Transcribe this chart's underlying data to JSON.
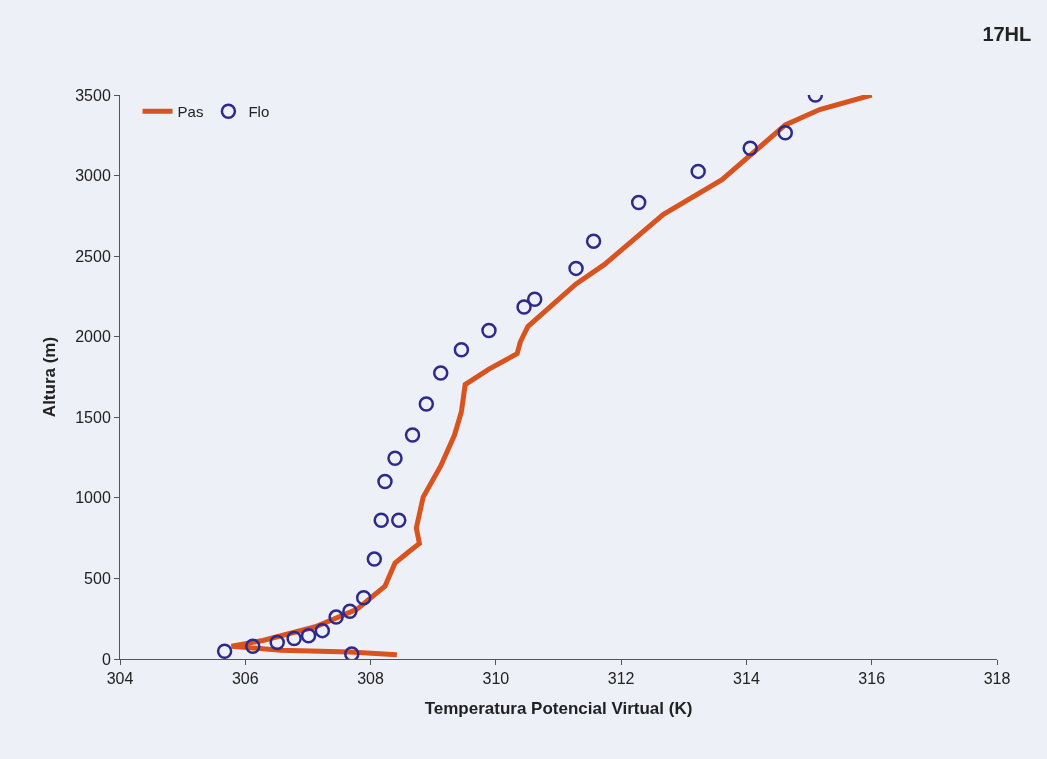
{
  "chart_data": {
    "type": "line",
    "title": "17HL",
    "xlabel": "Temperatura Potencial Virtual (K)",
    "ylabel": "Altura (m)",
    "xlim": [
      304,
      318
    ],
    "xticks": [
      304,
      306,
      308,
      310,
      312,
      314,
      316,
      318
    ],
    "ylim": [
      0,
      3500
    ],
    "yticks": [
      0,
      500,
      1000,
      1500,
      2000,
      2500,
      3000,
      3500
    ],
    "grid": false,
    "legend": "top left",
    "series": [
      {
        "name": "Pas",
        "color": "#d9531e",
        "marker": "none",
        "x": [
          308.42,
          307.67,
          306.56,
          305.78,
          306.28,
          307.12,
          307.78,
          308.23,
          308.39,
          308.62,
          308.78,
          308.73,
          308.84,
          309.12,
          309.34,
          309.45,
          309.51,
          309.89,
          310.34,
          310.39,
          310.51,
          311.28,
          311.73,
          312.67,
          313.61,
          314.62,
          315.17,
          316.0
        ],
        "values": [
          26,
          43,
          55,
          79,
          115,
          200,
          308,
          452,
          596,
          669,
          717,
          813,
          1005,
          1198,
          1390,
          1534,
          1703,
          1799,
          1895,
          1967,
          2063,
          2328,
          2447,
          2758,
          2974,
          3314,
          3410,
          3500
        ]
      },
      {
        "name": "Flo",
        "type": "scatter",
        "color": "#2e2a8c",
        "marker": "circle",
        "x": [
          307.7,
          305.67,
          306.12,
          306.51,
          306.78,
          307.01,
          307.23,
          307.45,
          307.67,
          307.89,
          308.06,
          308.17,
          308.45,
          308.23,
          308.39,
          308.67,
          308.89,
          309.12,
          309.45,
          309.89,
          310.45,
          310.62,
          311.28,
          311.56,
          312.28,
          313.23,
          314.06,
          314.62,
          315.1
        ],
        "values": [
          31,
          48,
          79,
          103,
          127,
          144,
          176,
          260,
          296,
          380,
          620,
          861,
          861,
          1101,
          1246,
          1390,
          1582,
          1775,
          1919,
          2039,
          2184,
          2233,
          2424,
          2593,
          2833,
          3026,
          3170,
          3266,
          3500
        ]
      }
    ]
  }
}
